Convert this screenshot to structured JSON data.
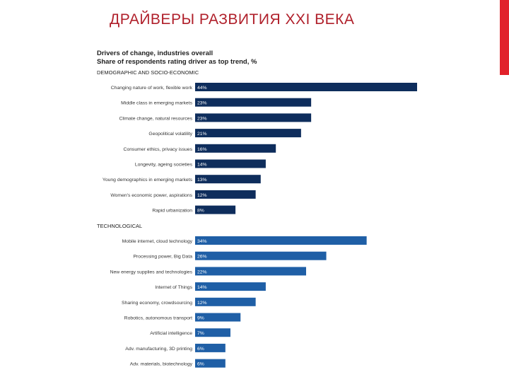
{
  "slide": {
    "title": "ДРАЙВЕРЫ РАЗВИТИЯ XXI ВЕКА",
    "accent_color": "#e1222b",
    "title_color": "#b0202b"
  },
  "chart_data": {
    "type": "bar",
    "orientation": "horizontal",
    "title": "Drivers of change, industries overall",
    "subtitle": "Share of respondents rating driver as top trend, %",
    "xlabel": "",
    "ylabel": "",
    "xlim": [
      0,
      44
    ],
    "grid": false,
    "legend": "none",
    "groups": [
      {
        "name": "DEMOGRAPHIC AND SOCIO-ECONOMIC",
        "color": "#0e2d5c",
        "categories": [
          "Changing nature of work, flexible work",
          "Middle class in emerging markets",
          "Climate change, natural resources",
          "Geopolitical volatility",
          "Consumer ethics, privacy issues",
          "Longevity, ageing societies",
          "Young demographics in emerging markets",
          "Women's economic power, aspirations",
          "Rapid urbanization"
        ],
        "values": [
          44,
          23,
          23,
          21,
          16,
          14,
          13,
          12,
          8
        ],
        "labels": [
          "44%",
          "23%",
          "23%",
          "21%",
          "16%",
          "14%",
          "13%",
          "12%",
          "8%"
        ]
      },
      {
        "name": "TECHNOLOGICAL",
        "color": "#1f5fa6",
        "categories": [
          "Mobile internet, cloud technology",
          "Processing power, Big Data",
          "New energy supplies and technologies",
          "Internet of Things",
          "Sharing economy, crowdsourcing",
          "Robotics, autonomous transport",
          "Artificial intelligence",
          "Adv. manufacturing, 3D printing",
          "Adv. materials, biotechnology"
        ],
        "values": [
          34,
          26,
          22,
          14,
          12,
          9,
          7,
          6,
          6
        ],
        "labels": [
          "34%",
          "26%",
          "22%",
          "14%",
          "12%",
          "9%",
          "7%",
          "6%",
          "6%"
        ]
      }
    ]
  }
}
